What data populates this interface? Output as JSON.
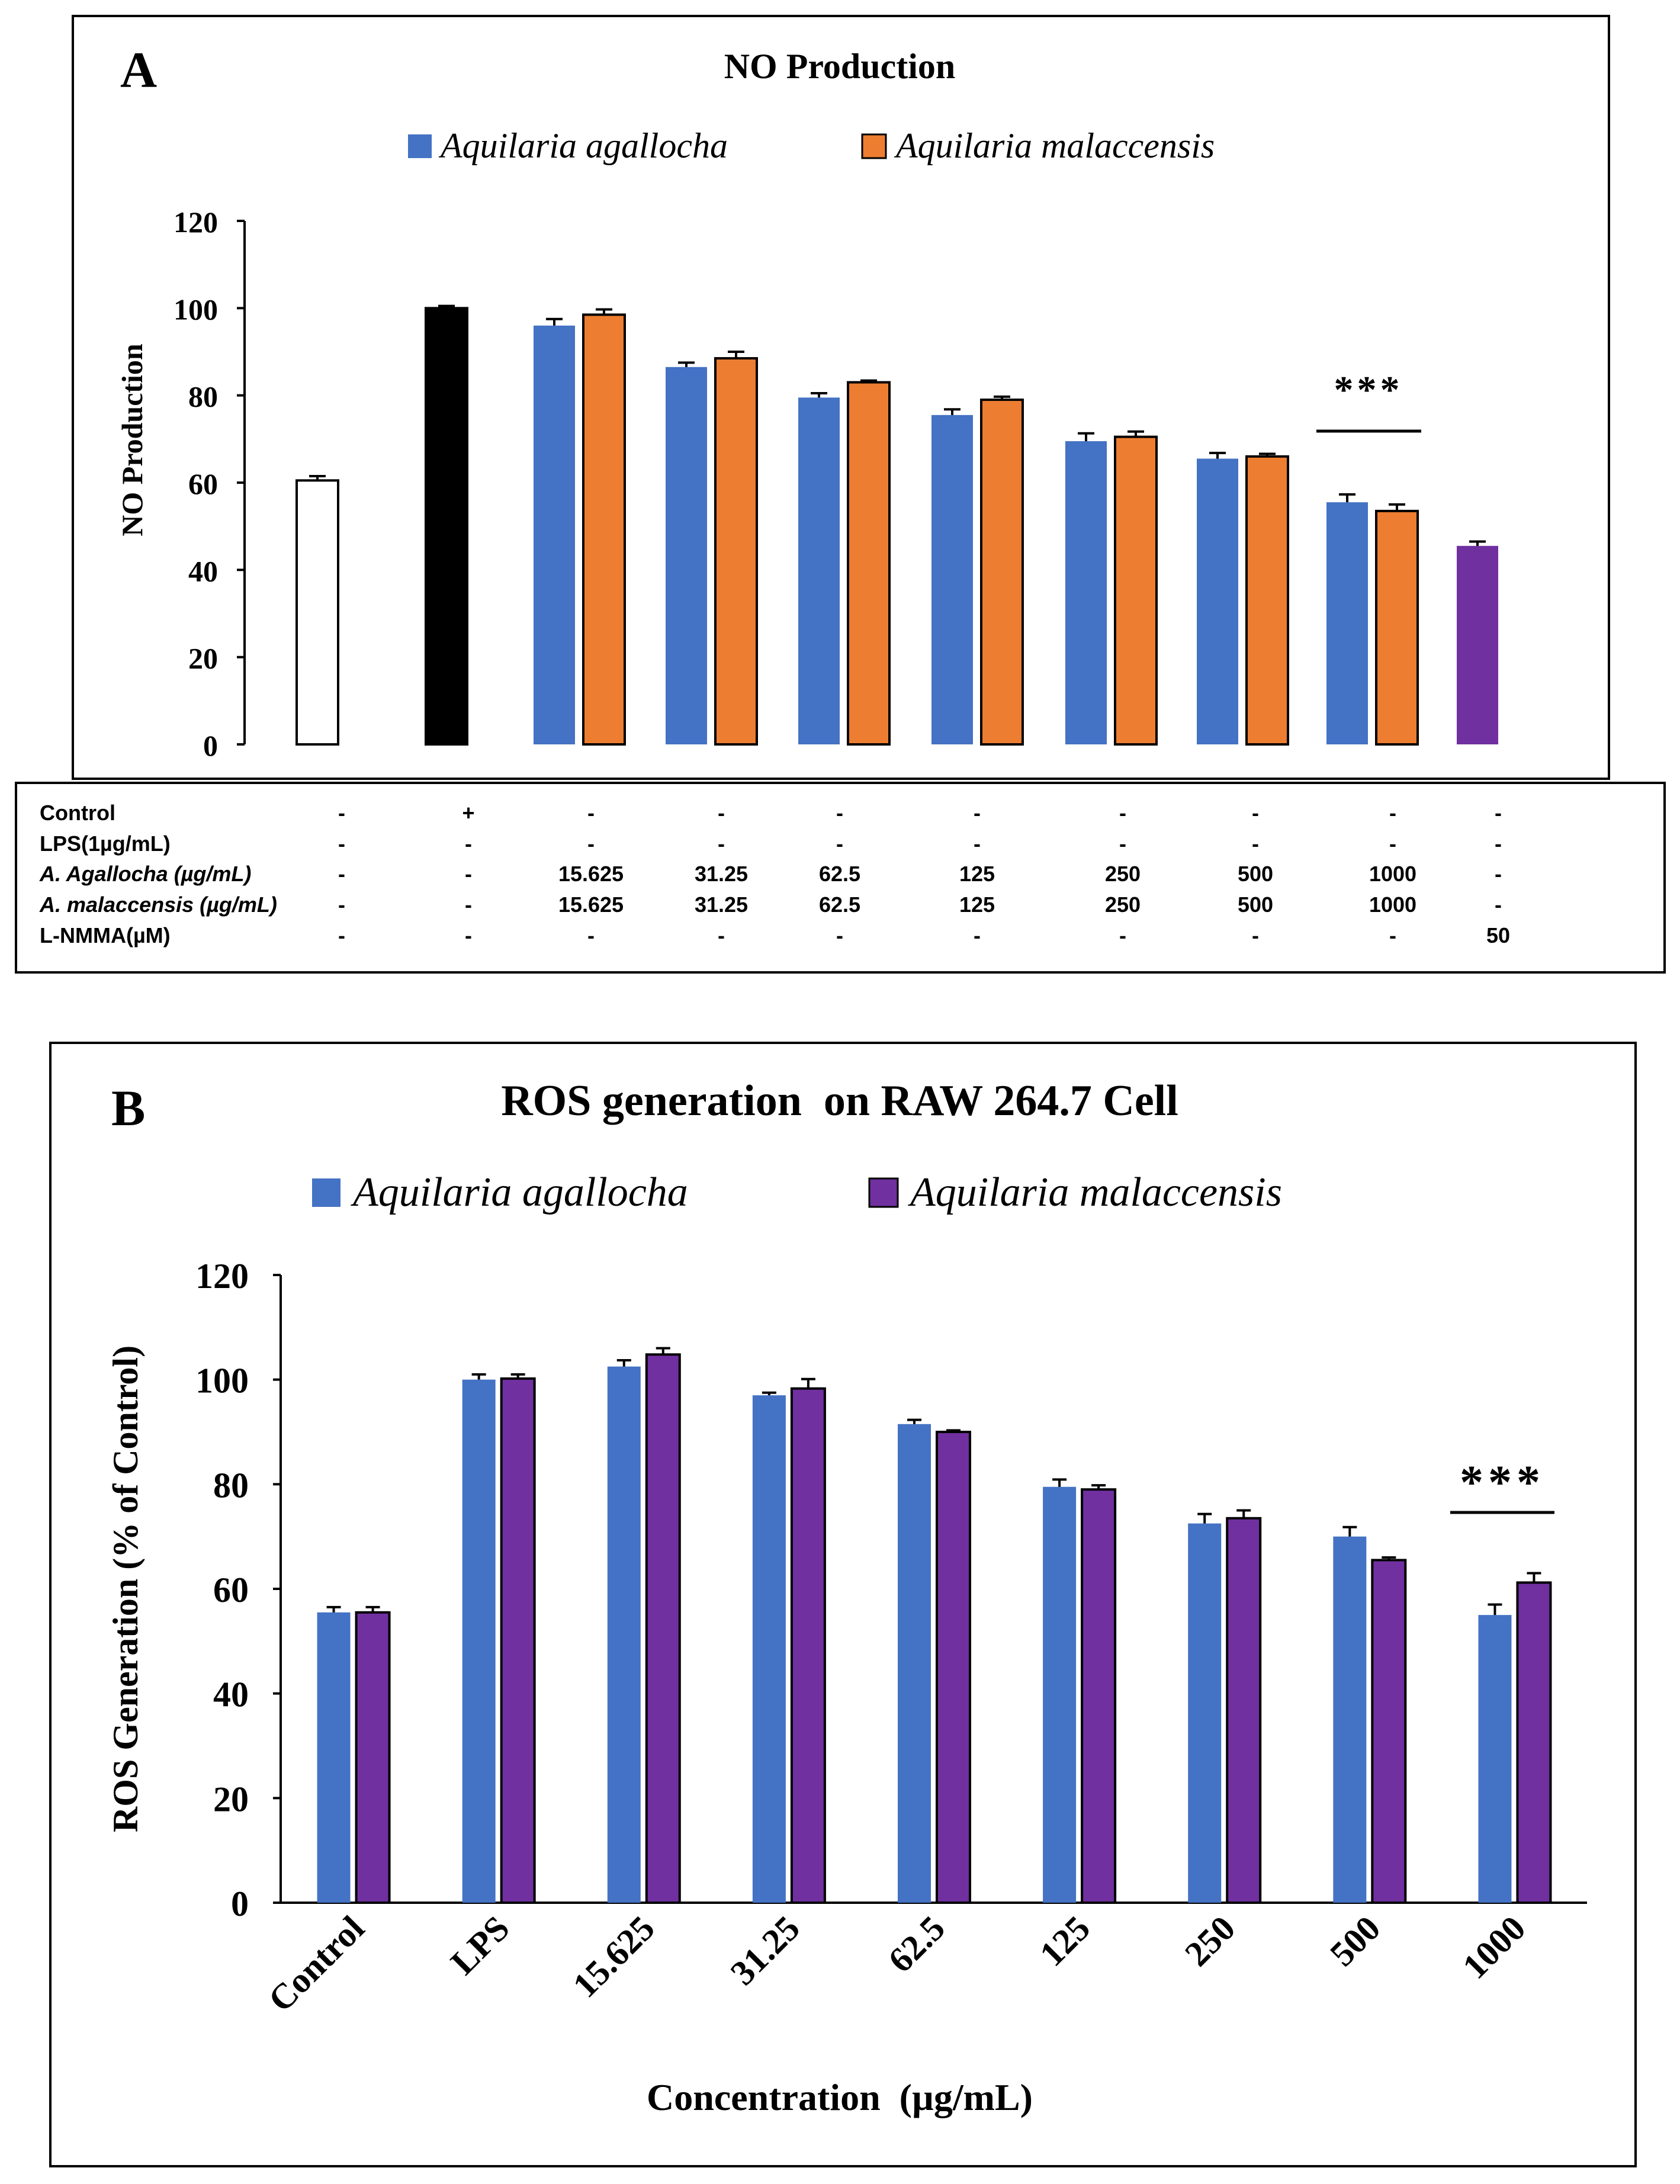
{
  "colors": {
    "agallocha": "#4472C4",
    "malaccensis_a": "#ED7D31",
    "malaccensis_b": "#7030A0",
    "lps": "#000000",
    "control": "#FFFFFF",
    "lnmma": "#7030A0"
  },
  "panel_a": {
    "letter": "A",
    "significance": "***"
  },
  "panel_b": {
    "letter": "B",
    "significance": "***"
  },
  "treatment_table": {
    "rows": [
      {
        "label": "Control",
        "italic": false,
        "values": [
          "-",
          "+",
          "-",
          "-",
          "-",
          "-",
          "-",
          "-",
          "-",
          "-"
        ]
      },
      {
        "label": "LPS(1µg/mL)",
        "italic": false,
        "values": [
          "-",
          "-",
          "-",
          "-",
          "-",
          "-",
          "-",
          "-",
          "-",
          "-"
        ]
      },
      {
        "label": "A. Agallocha (µg/mL)",
        "italic": true,
        "values": [
          "-",
          "-",
          "15.625",
          "31.25",
          "62.5",
          "125",
          "250",
          "500",
          "1000",
          "-"
        ]
      },
      {
        "label": "A. malaccensis (µg/mL)",
        "italic": true,
        "values": [
          "-",
          "-",
          "15.625",
          "31.25",
          "62.5",
          "125",
          "250",
          "500",
          "1000",
          "-"
        ]
      },
      {
        "label": "L-NMMA(µM)",
        "italic": false,
        "values": [
          "-",
          "-",
          "-",
          "-",
          "-",
          "-",
          "-",
          "-",
          "-",
          "50"
        ]
      }
    ]
  },
  "chart_data": [
    {
      "type": "bar",
      "title": "NO Production",
      "xlabel": "",
      "ylabel": "NO Production",
      "ylim": [
        0,
        120
      ],
      "yticks": [
        0,
        20,
        40,
        60,
        80,
        100,
        120
      ],
      "legend": [
        "Aquilaria agallocha",
        "Aquilaria malaccensis"
      ],
      "groups": [
        {
          "bars": [
            {
              "series": "Control",
              "value": 60.5,
              "error": 1.0
            }
          ]
        },
        {
          "bars": [
            {
              "series": "LPS",
              "value": 100,
              "error": 0.5
            }
          ]
        },
        {
          "bars": [
            {
              "series": "Aquilaria agallocha",
              "value": 96,
              "error": 1.5
            },
            {
              "series": "Aquilaria malaccensis",
              "value": 98.5,
              "error": 1.2
            }
          ]
        },
        {
          "bars": [
            {
              "series": "Aquilaria agallocha",
              "value": 86.5,
              "error": 1.0
            },
            {
              "series": "Aquilaria malaccensis",
              "value": 88.5,
              "error": 1.5
            }
          ]
        },
        {
          "bars": [
            {
              "series": "Aquilaria agallocha",
              "value": 79.5,
              "error": 1.0
            },
            {
              "series": "Aquilaria malaccensis",
              "value": 83,
              "error": 0.4
            }
          ]
        },
        {
          "bars": [
            {
              "series": "Aquilaria agallocha",
              "value": 75.5,
              "error": 1.3
            },
            {
              "series": "Aquilaria malaccensis",
              "value": 79,
              "error": 0.7
            }
          ]
        },
        {
          "bars": [
            {
              "series": "Aquilaria agallocha",
              "value": 69.5,
              "error": 1.8
            },
            {
              "series": "Aquilaria malaccensis",
              "value": 70.5,
              "error": 1.2
            }
          ]
        },
        {
          "bars": [
            {
              "series": "Aquilaria agallocha",
              "value": 65.5,
              "error": 1.3
            },
            {
              "series": "Aquilaria malaccensis",
              "value": 66,
              "error": 0.6
            }
          ]
        },
        {
          "bars": [
            {
              "series": "Aquilaria agallocha",
              "value": 55.5,
              "error": 1.8
            },
            {
              "series": "Aquilaria malaccensis",
              "value": 53.5,
              "error": 1.5
            }
          ]
        },
        {
          "bars": [
            {
              "series": "L-NMMA",
              "value": 45.5,
              "error": 1.0
            }
          ]
        }
      ]
    },
    {
      "type": "bar",
      "title": "ROS generation  on RAW 264.7 Cell",
      "xlabel": "Concentration  (µg/mL)",
      "ylabel": "ROS Generation (% of Control)",
      "ylim": [
        0,
        120
      ],
      "yticks": [
        0,
        20,
        40,
        60,
        80,
        100,
        120
      ],
      "legend": [
        "Aquilaria agallocha",
        "Aquilaria malaccensis"
      ],
      "categories": [
        "Control",
        "LPS",
        "15.625",
        "31.25",
        "62.5",
        "125",
        "250",
        "500",
        "1000"
      ],
      "series": [
        {
          "name": "Aquilaria agallocha",
          "values": [
            55.5,
            100,
            102.5,
            97,
            91.5,
            79.5,
            72.5,
            70,
            55
          ],
          "errors": [
            1.0,
            1.0,
            1.2,
            0.5,
            0.8,
            1.4,
            1.8,
            1.8,
            2.0
          ]
        },
        {
          "name": "Aquilaria malaccensis",
          "values": [
            55.5,
            100.2,
            104.8,
            98.3,
            90,
            79,
            73.5,
            65.5,
            61.2
          ],
          "errors": [
            1.0,
            0.8,
            1.2,
            1.8,
            0.3,
            0.8,
            1.5,
            0.5,
            1.8
          ]
        }
      ]
    }
  ]
}
